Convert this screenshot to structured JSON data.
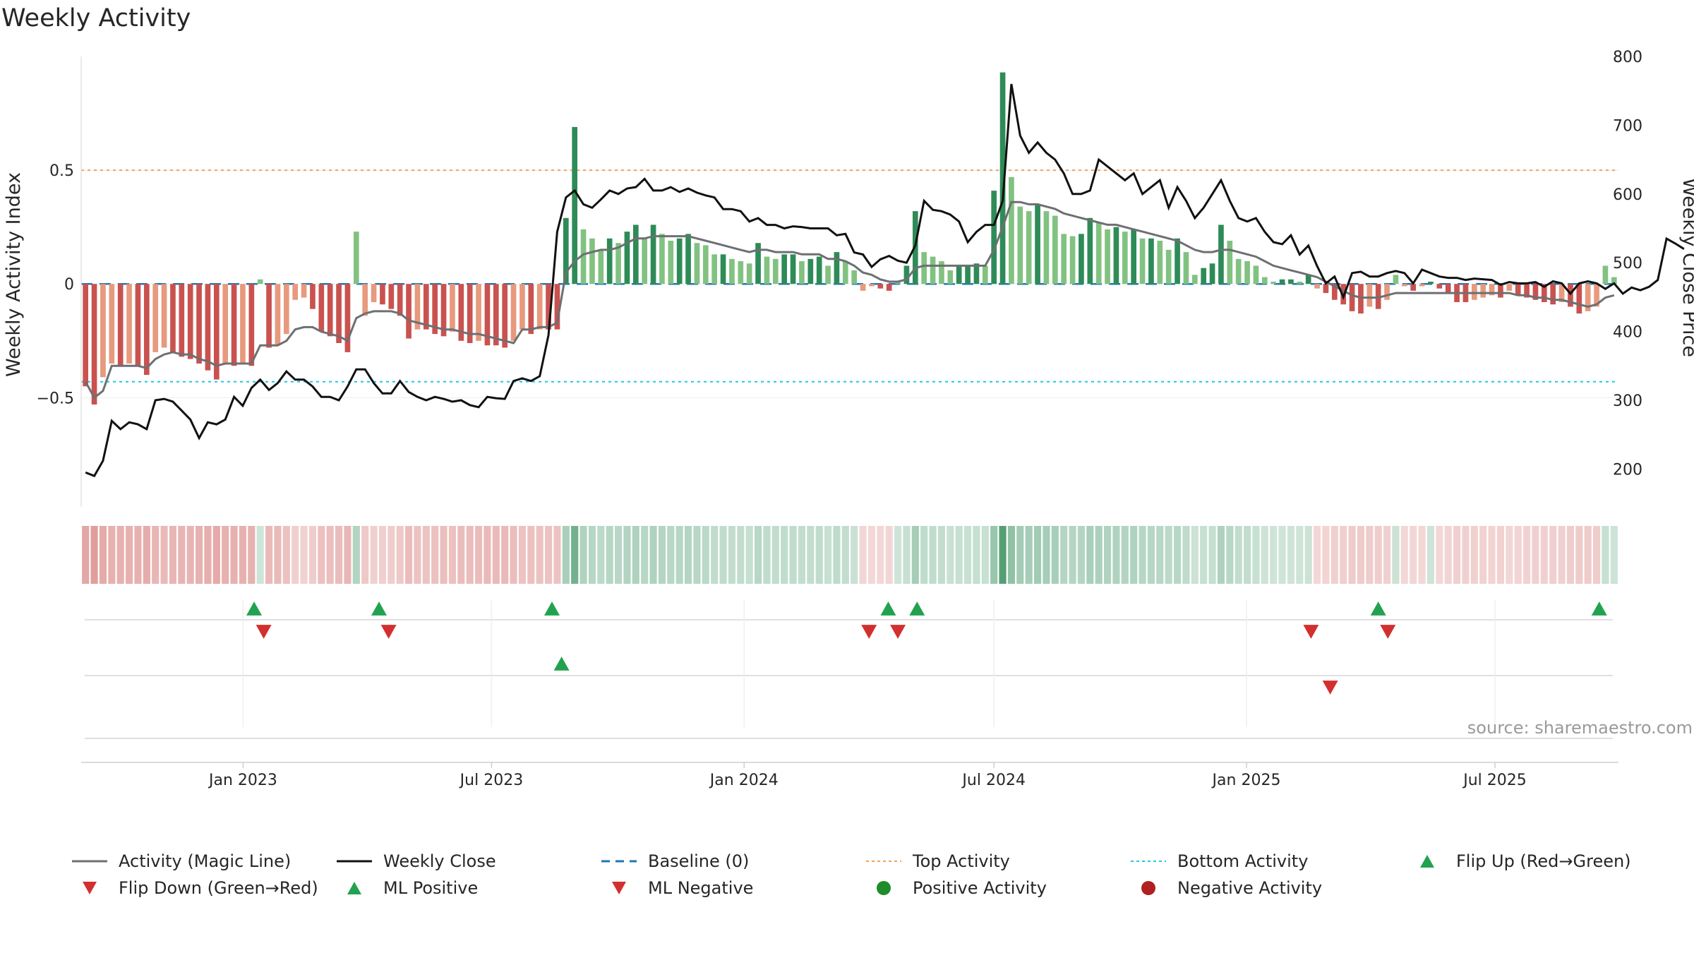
{
  "chart_data": {
    "type": "bar",
    "title": "Weekly Activity",
    "source": "source: sharemaestro.com",
    "ylabel": "Weekly Activity Index",
    "ylabel_right": "Weekly Close Price",
    "ylim": [
      -0.98,
      1.0
    ],
    "ylim_right": [
      145,
      800
    ],
    "yticks": [
      {
        "v": 0.5,
        "label": "0.5"
      },
      {
        "v": 0,
        "label": "0"
      },
      {
        "v": -0.5,
        "label": "−0.5"
      }
    ],
    "yticks_right": [
      200,
      300,
      400,
      500,
      600,
      700,
      800
    ],
    "x_start": "2022-09-05",
    "x_end": "2025-09-29",
    "xticks": [
      {
        "date": "2023-01-01",
        "label": "Jan 2023"
      },
      {
        "date": "2023-07-01",
        "label": "Jul 2023"
      },
      {
        "date": "2024-01-01",
        "label": "Jan 2024"
      },
      {
        "date": "2024-07-01",
        "label": "Jul 2024"
      },
      {
        "date": "2025-01-01",
        "label": "Jan 2025"
      },
      {
        "date": "2025-07-01",
        "label": "Jul 2025"
      }
    ],
    "reference_lines": {
      "baseline": 0,
      "top_activity": 0.5,
      "bottom_activity": -0.43
    },
    "activity_index": [
      -0.45,
      -0.53,
      -0.41,
      -0.35,
      -0.36,
      -0.35,
      -0.36,
      -0.4,
      -0.3,
      -0.28,
      -0.3,
      -0.32,
      -0.33,
      -0.35,
      -0.38,
      -0.42,
      -0.35,
      -0.36,
      -0.35,
      -0.36,
      0.02,
      -0.28,
      -0.27,
      -0.22,
      -0.07,
      -0.06,
      -0.11,
      -0.21,
      -0.23,
      -0.26,
      -0.3,
      0.23,
      -0.14,
      -0.08,
      -0.09,
      -0.11,
      -0.14,
      -0.24,
      -0.2,
      -0.2,
      -0.22,
      -0.23,
      -0.21,
      -0.25,
      -0.26,
      -0.25,
      -0.27,
      -0.27,
      -0.28,
      -0.25,
      -0.2,
      -0.22,
      -0.2,
      -0.2,
      -0.2,
      0.29,
      0.69,
      0.24,
      0.2,
      0.15,
      0.2,
      0.18,
      0.23,
      0.26,
      0.2,
      0.26,
      0.22,
      0.19,
      0.2,
      0.22,
      0.18,
      0.17,
      0.13,
      0.13,
      0.11,
      0.1,
      0.09,
      0.18,
      0.12,
      0.11,
      0.13,
      0.13,
      0.1,
      0.11,
      0.12,
      0.08,
      0.14,
      0.1,
      0.06,
      -0.03,
      -0.01,
      -0.02,
      -0.03,
      0.01,
      0.08,
      0.32,
      0.14,
      0.12,
      0.1,
      0.06,
      0.08,
      0.08,
      0.09,
      0.08,
      0.41,
      0.93,
      0.47,
      0.34,
      0.32,
      0.35,
      0.32,
      0.3,
      0.22,
      0.21,
      0.22,
      0.29,
      0.27,
      0.24,
      0.25,
      0.23,
      0.24,
      0.2,
      0.2,
      0.19,
      0.15,
      0.2,
      0.14,
      0.04,
      0.07,
      0.09,
      0.26,
      0.19,
      0.11,
      0.1,
      0.08,
      0.03,
      0.01,
      0.02,
      0.02,
      0.01,
      0.04,
      -0.02,
      -0.04,
      -0.07,
      -0.09,
      -0.12,
      -0.13,
      -0.1,
      -0.11,
      -0.07,
      0.04,
      -0.01,
      -0.03,
      -0.01,
      0.01,
      -0.02,
      -0.04,
      -0.08,
      -0.08,
      -0.07,
      -0.06,
      -0.05,
      -0.06,
      -0.03,
      -0.05,
      -0.06,
      -0.07,
      -0.08,
      -0.09,
      -0.08,
      -0.1,
      -0.13,
      -0.12,
      -0.1,
      0.08,
      0.03
    ],
    "magic_line": [
      -0.43,
      -0.5,
      -0.47,
      -0.36,
      -0.36,
      -0.36,
      -0.36,
      -0.37,
      -0.33,
      -0.31,
      -0.3,
      -0.31,
      -0.31,
      -0.33,
      -0.34,
      -0.36,
      -0.35,
      -0.35,
      -0.35,
      -0.35,
      -0.27,
      -0.27,
      -0.27,
      -0.25,
      -0.2,
      -0.19,
      -0.19,
      -0.21,
      -0.22,
      -0.23,
      -0.25,
      -0.15,
      -0.13,
      -0.12,
      -0.12,
      -0.12,
      -0.13,
      -0.16,
      -0.17,
      -0.18,
      -0.19,
      -0.2,
      -0.2,
      -0.21,
      -0.22,
      -0.22,
      -0.23,
      -0.24,
      -0.25,
      -0.26,
      -0.2,
      -0.2,
      -0.19,
      -0.19,
      -0.17,
      0.05,
      0.1,
      0.13,
      0.14,
      0.15,
      0.15,
      0.16,
      0.18,
      0.2,
      0.2,
      0.21,
      0.21,
      0.21,
      0.21,
      0.21,
      0.2,
      0.19,
      0.18,
      0.17,
      0.16,
      0.15,
      0.14,
      0.15,
      0.15,
      0.14,
      0.14,
      0.14,
      0.13,
      0.13,
      0.13,
      0.11,
      0.11,
      0.1,
      0.08,
      0.05,
      0.04,
      0.02,
      0.01,
      0.01,
      0.02,
      0.07,
      0.08,
      0.08,
      0.08,
      0.08,
      0.08,
      0.08,
      0.08,
      0.08,
      0.15,
      0.25,
      0.36,
      0.36,
      0.35,
      0.35,
      0.34,
      0.33,
      0.31,
      0.3,
      0.29,
      0.28,
      0.27,
      0.26,
      0.26,
      0.25,
      0.24,
      0.23,
      0.22,
      0.21,
      0.2,
      0.19,
      0.17,
      0.15,
      0.14,
      0.14,
      0.15,
      0.15,
      0.14,
      0.13,
      0.12,
      0.1,
      0.08,
      0.07,
      0.06,
      0.05,
      0.04,
      0.03,
      0.01,
      -0.01,
      -0.03,
      -0.05,
      -0.06,
      -0.06,
      -0.06,
      -0.05,
      -0.04,
      -0.04,
      -0.04,
      -0.04,
      -0.04,
      -0.04,
      -0.04,
      -0.04,
      -0.04,
      -0.04,
      -0.04,
      -0.04,
      -0.04,
      -0.04,
      -0.05,
      -0.05,
      -0.06,
      -0.06,
      -0.07,
      -0.07,
      -0.08,
      -0.09,
      -0.1,
      -0.09,
      -0.06,
      -0.05
    ],
    "weekly_close": [
      195,
      190,
      212,
      270,
      258,
      268,
      265,
      258,
      300,
      302,
      298,
      285,
      272,
      245,
      268,
      265,
      272,
      305,
      292,
      318,
      330,
      315,
      325,
      342,
      330,
      330,
      320,
      305,
      305,
      300,
      320,
      345,
      345,
      325,
      310,
      310,
      328,
      312,
      305,
      300,
      305,
      302,
      298,
      300,
      293,
      290,
      305,
      303,
      302,
      328,
      332,
      328,
      335,
      395,
      545,
      595,
      605,
      585,
      580,
      592,
      605,
      600,
      608,
      610,
      622,
      605,
      605,
      610,
      603,
      608,
      602,
      598,
      595,
      578,
      578,
      575,
      560,
      565,
      555,
      555,
      550,
      553,
      552,
      550,
      550,
      550,
      540,
      542,
      515,
      512,
      494,
      505,
      510,
      503,
      500,
      525,
      590,
      577,
      575,
      570,
      560,
      530,
      545,
      555,
      555,
      590,
      760,
      685,
      660,
      675,
      660,
      650,
      630,
      600,
      600,
      605,
      650,
      640,
      630,
      620,
      630,
      600,
      610,
      620,
      580,
      610,
      590,
      565,
      580,
      600,
      620,
      590,
      565,
      560,
      565,
      545,
      530,
      527,
      540,
      512,
      525,
      495,
      470,
      480,
      450,
      485,
      487,
      480,
      480,
      485,
      488,
      485,
      470,
      490,
      485,
      480,
      478,
      478,
      475,
      477,
      476,
      475,
      468,
      472,
      470,
      470,
      472,
      465,
      473,
      470,
      455,
      470,
      473,
      470,
      462,
      470,
      455,
      464,
      460,
      465,
      475,
      535,
      528,
      520
    ]
  },
  "flip_markers": {
    "flip_up_dates": [
      "2023-01-09",
      "2023-04-10",
      "2023-08-14",
      "2024-04-15",
      "2024-05-06",
      "2025-04-07",
      "2025-09-15"
    ],
    "flip_down_dates": [
      "2023-01-16",
      "2023-04-17",
      "2024-04-01",
      "2024-04-22",
      "2025-02-17",
      "2025-04-14"
    ],
    "ml_positive_dates": [
      "2023-08-21"
    ],
    "ml_negative_dates": [
      "2025-03-03"
    ]
  },
  "colors": {
    "pos_strong": "#2e8b57",
    "pos_light": "#82c281",
    "neg_strong": "#c9524f",
    "neg_light": "#e79a7d",
    "magic_line": "#6d6f73",
    "close_line": "#111111",
    "baseline": "#1f77b4",
    "top": "#f0a060",
    "bottom": "#20c8e0",
    "flip_up": "#22a24f",
    "flip_down": "#d32f2f"
  },
  "legend": [
    {
      "icon": "line",
      "color": "#6d6f73",
      "label": "Activity (Magic Line)"
    },
    {
      "icon": "line",
      "color": "#111111",
      "label": "Weekly Close"
    },
    {
      "icon": "dash",
      "color": "#1f77b4",
      "label": "Baseline (0)"
    },
    {
      "icon": "dot",
      "color": "#f0a060",
      "label": "Top Activity"
    },
    {
      "icon": "dot",
      "color": "#20c8e0",
      "label": "Bottom Activity"
    },
    {
      "icon": "tri-up",
      "color": "#22a24f",
      "label": "Flip Up (Red→Green)"
    },
    {
      "icon": "tri-down",
      "color": "#d32f2f",
      "label": "Flip Down (Green→Red)"
    },
    {
      "icon": "tri-up",
      "color": "#22a24f",
      "label": "ML Positive"
    },
    {
      "icon": "tri-down",
      "color": "#d32f2f",
      "label": "ML Negative"
    },
    {
      "icon": "circle",
      "color": "#1e8c2a",
      "label": "Positive Activity"
    },
    {
      "icon": "circle",
      "color": "#b02020",
      "label": "Negative Activity"
    }
  ]
}
